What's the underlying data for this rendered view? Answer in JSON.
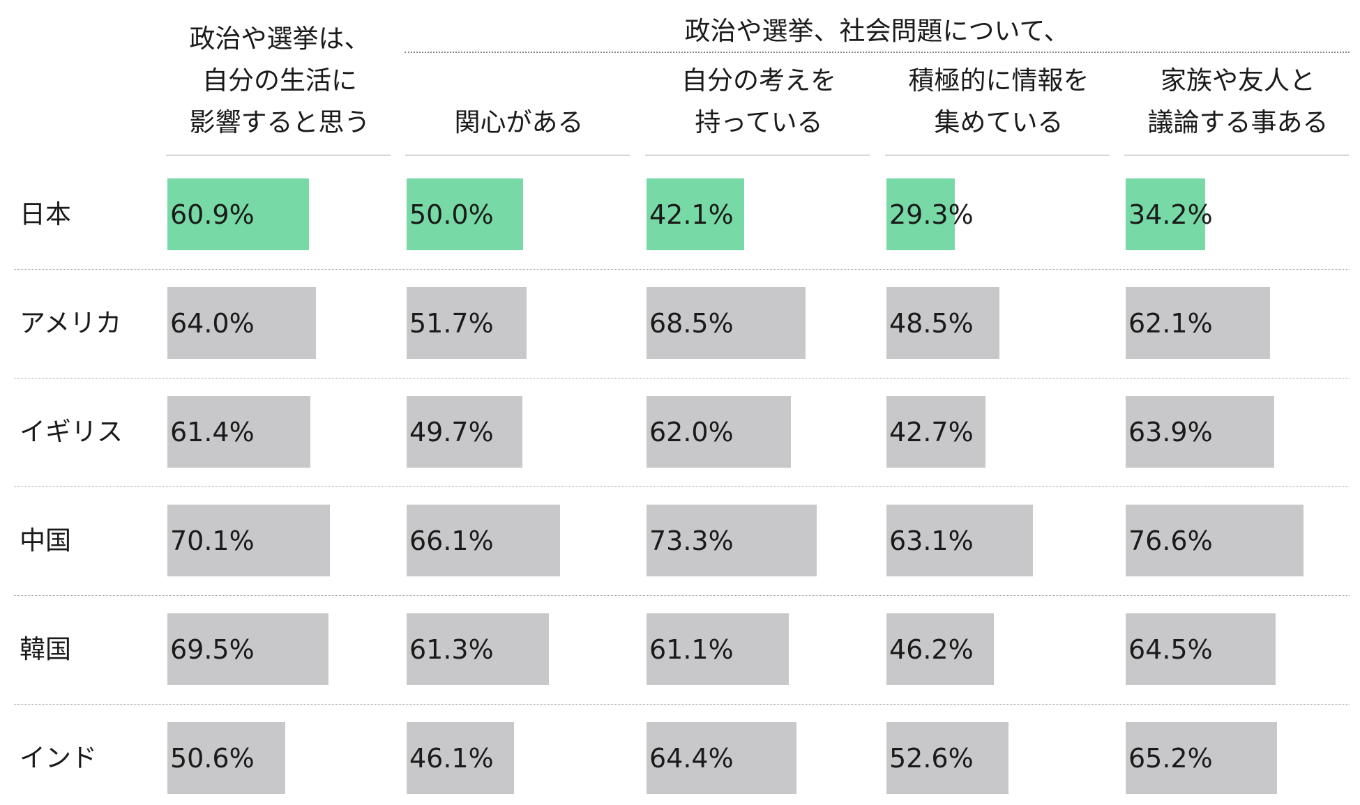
{
  "colors": {
    "highlight": "#77d9a6",
    "default": "#c8c8ca"
  },
  "header": {
    "group_title": "政治や選挙、社会問題について、",
    "columns": [
      [
        "政治や選挙は、",
        "自分の生活に",
        "影響すると思う"
      ],
      [
        "関心がある"
      ],
      [
        "自分の考えを",
        "持っている"
      ],
      [
        "積極的に情報を",
        "集めている"
      ],
      [
        "家族や友人と",
        "議論する事ある"
      ]
    ]
  },
  "chart_data": {
    "type": "bar",
    "orientation": "horizontal",
    "layout": "small-multiples table",
    "xlim": [
      0,
      100
    ],
    "highlight_row": "日本",
    "categories": [
      "日本",
      "アメリカ",
      "イギリス",
      "中国",
      "韓国",
      "インド"
    ],
    "value_labels": [
      [
        "60.9%",
        "50.0%",
        "42.1%",
        "29.3%",
        "34.2%"
      ],
      [
        "64.0%",
        "51.7%",
        "68.5%",
        "48.5%",
        "62.1%"
      ],
      [
        "61.4%",
        "49.7%",
        "62.0%",
        "42.7%",
        "63.9%"
      ],
      [
        "70.1%",
        "66.1%",
        "73.3%",
        "63.1%",
        "76.6%"
      ],
      [
        "69.5%",
        "61.3%",
        "61.1%",
        "46.2%",
        "64.5%"
      ],
      [
        "50.6%",
        "46.1%",
        "64.4%",
        "52.6%",
        "65.2%"
      ]
    ],
    "series": [
      {
        "values": [
          60.9,
          64.0,
          61.4,
          70.1,
          69.5,
          50.6
        ]
      },
      {
        "values": [
          50.0,
          51.7,
          49.7,
          66.1,
          61.3,
          46.1
        ]
      },
      {
        "values": [
          42.1,
          68.5,
          62.0,
          73.3,
          61.1,
          64.4
        ]
      },
      {
        "values": [
          29.3,
          48.5,
          42.7,
          63.1,
          46.2,
          52.6
        ]
      },
      {
        "values": [
          34.2,
          62.1,
          63.9,
          76.6,
          64.5,
          65.2
        ]
      }
    ]
  }
}
